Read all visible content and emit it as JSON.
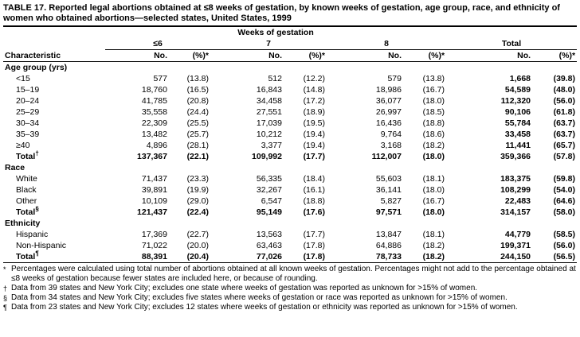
{
  "title": "TABLE 17. Reported legal abortions obtained at ≤8 weeks of gestation, by known weeks of gestation, age group, race, and ethnicity of women who obtained abortions—selected states, United States, 1999",
  "table": {
    "spanner": "Weeks of gestation",
    "groups": [
      "≤6",
      "7",
      "8",
      "Total"
    ],
    "columns": [
      "Characteristic",
      "No.",
      "(%)*",
      "No.",
      "(%)*",
      "No.",
      "(%)*",
      "No.",
      "(%)*"
    ],
    "sections": [
      {
        "heading": "Age group (yrs)",
        "rows": [
          {
            "label": "<15",
            "cells": [
              "577",
              "(13.8)",
              "512",
              "(12.2)",
              "579",
              "(13.8)",
              "1,668",
              "(39.8)"
            ]
          },
          {
            "label": "15–19",
            "cells": [
              "18,760",
              "(16.5)",
              "16,843",
              "(14.8)",
              "18,986",
              "(16.7)",
              "54,589",
              "(48.0)"
            ]
          },
          {
            "label": "20–24",
            "cells": [
              "41,785",
              "(20.8)",
              "34,458",
              "(17.2)",
              "36,077",
              "(18.0)",
              "112,320",
              "(56.0)"
            ]
          },
          {
            "label": "25–29",
            "cells": [
              "35,558",
              "(24.4)",
              "27,551",
              "(18.9)",
              "26,997",
              "(18.5)",
              "90,106",
              "(61.8)"
            ]
          },
          {
            "label": "30–34",
            "cells": [
              "22,309",
              "(25.5)",
              "17,039",
              "(19.5)",
              "16,436",
              "(18.8)",
              "55,784",
              "(63.7)"
            ]
          },
          {
            "label": "35–39",
            "cells": [
              "13,482",
              "(25.7)",
              "10,212",
              "(19.4)",
              "9,764",
              "(18.6)",
              "33,458",
              "(63.7)"
            ]
          },
          {
            "label": "≥40",
            "cells": [
              "4,896",
              "(28.1)",
              "3,377",
              "(19.4)",
              "3,168",
              "(18.2)",
              "11,441",
              "(65.7)"
            ]
          }
        ],
        "total": {
          "label": "Total",
          "note": "†",
          "cells": [
            "137,367",
            "(22.1)",
            "109,992",
            "(17.7)",
            "112,007",
            "(18.0)",
            "359,366",
            "(57.8)"
          ]
        }
      },
      {
        "heading": "Race",
        "rows": [
          {
            "label": "White",
            "cells": [
              "71,437",
              "(23.3)",
              "56,335",
              "(18.4)",
              "55,603",
              "(18.1)",
              "183,375",
              "(59.8)"
            ]
          },
          {
            "label": "Black",
            "cells": [
              "39,891",
              "(19.9)",
              "32,267",
              "(16.1)",
              "36,141",
              "(18.0)",
              "108,299",
              "(54.0)"
            ]
          },
          {
            "label": "Other",
            "cells": [
              "10,109",
              "(29.0)",
              "6,547",
              "(18.8)",
              "5,827",
              "(16.7)",
              "22,483",
              "(64.6)"
            ]
          }
        ],
        "total": {
          "label": "Total",
          "note": "§",
          "cells": [
            "121,437",
            "(22.4)",
            "95,149",
            "(17.6)",
            "97,571",
            "(18.0)",
            "314,157",
            "(58.0)"
          ]
        }
      },
      {
        "heading": "Ethnicity",
        "rows": [
          {
            "label": "Hispanic",
            "cells": [
              "17,369",
              "(22.7)",
              "13,563",
              "(17.7)",
              "13,847",
              "(18.1)",
              "44,779",
              "(58.5)"
            ]
          },
          {
            "label": "Non-Hispanic",
            "cells": [
              "71,022",
              "(20.0)",
              "63,463",
              "(17.8)",
              "64,886",
              "(18.2)",
              "199,371",
              "(56.0)"
            ]
          }
        ],
        "total": {
          "label": "Total",
          "note": "¶",
          "cells": [
            "88,391",
            "(20.4)",
            "77,026",
            "(17.8)",
            "78,733",
            "(18.2)",
            "244,150",
            "(56.5)"
          ]
        }
      }
    ]
  },
  "footnotes": [
    {
      "symbol": "*",
      "text": "Percentages were calculated using total number of abortions obtained at all known weeks of gestation. Percentages might not add to the percentage obtained at ≤8 weeks of gestation because fewer states are included here, or because of rounding."
    },
    {
      "symbol": "†",
      "text": "Data from 39 states and New York City; excludes one state where weeks of gestation was reported as unknown for >15% of women."
    },
    {
      "symbol": "§",
      "text": "Data from 34 states and New York City; excludes five states where weeks of gestation or race was reported as unknown for >15% of women."
    },
    {
      "symbol": "¶",
      "text": "Data from 23 states and New York City; excludes 12 states where weeks of gestation or ethnicity was reported as unknown for >15% of women."
    }
  ]
}
